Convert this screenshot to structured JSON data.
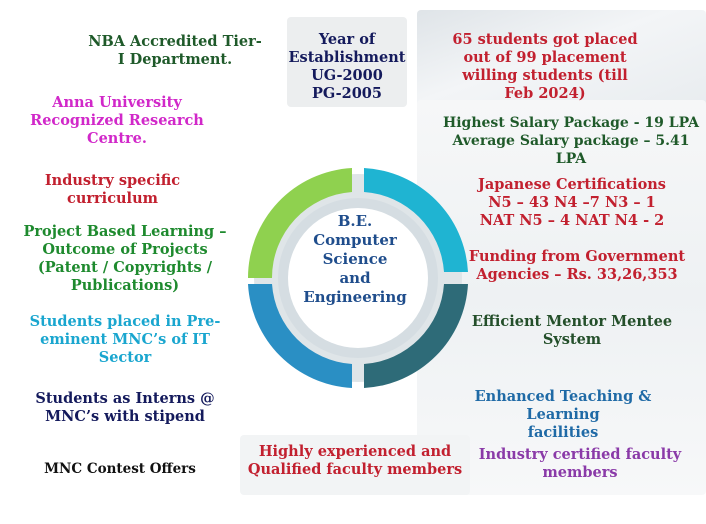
{
  "center": {
    "line1": "B.E.",
    "line2": "Computer",
    "line3": "Science",
    "line4": "and",
    "line5": "Engineering"
  },
  "items": {
    "nba": "NBA Accredited Tier-\nI Department.",
    "year": "Year of\nEstablishment\nUG-2000\nPG-2005",
    "placed": "65 students got placed\nout of 99 placement\nwilling students (till\nFeb 2024)",
    "anna": "Anna University\nRecognized Research\nCentre.",
    "salary": "Highest Salary Package - 19 LPA\nAverage Salary package – 5.41\nLPA",
    "industry": "Industry specific\ncurriculum",
    "japanese": "Japanese Certifications\nN5 – 43   N4 –7   N3 – 1\nNAT N5 – 4  NAT N4 - 2",
    "project": "Project Based Learning –\nOutcome of  Projects\n(Patent / Copyrights /\nPublications)",
    "funding": "Funding from Government\nAgencies – Rs. 33,26,353",
    "mnc_placed": "Students placed in Pre-\neminent MNC’s of IT\nSector",
    "mentor": "Efficient  Mentor Mentee\nSystem",
    "interns": "Students as Interns @\nMNC’s with stipend",
    "teaching": "Enhanced Teaching & Learning\nfacilities",
    "faculty_exp": "Highly experienced and\nQualified faculty members",
    "faculty_cert": "Industry certified faculty\nmembers",
    "contest": "MNC Contest Offers"
  },
  "colors": {
    "ring_green": "#8fd14f",
    "ring_cyan": "#1fb4d2",
    "ring_blue": "#2a8fc4",
    "ring_teal": "#2e6b78",
    "ring_inner": "#d5dde2"
  }
}
